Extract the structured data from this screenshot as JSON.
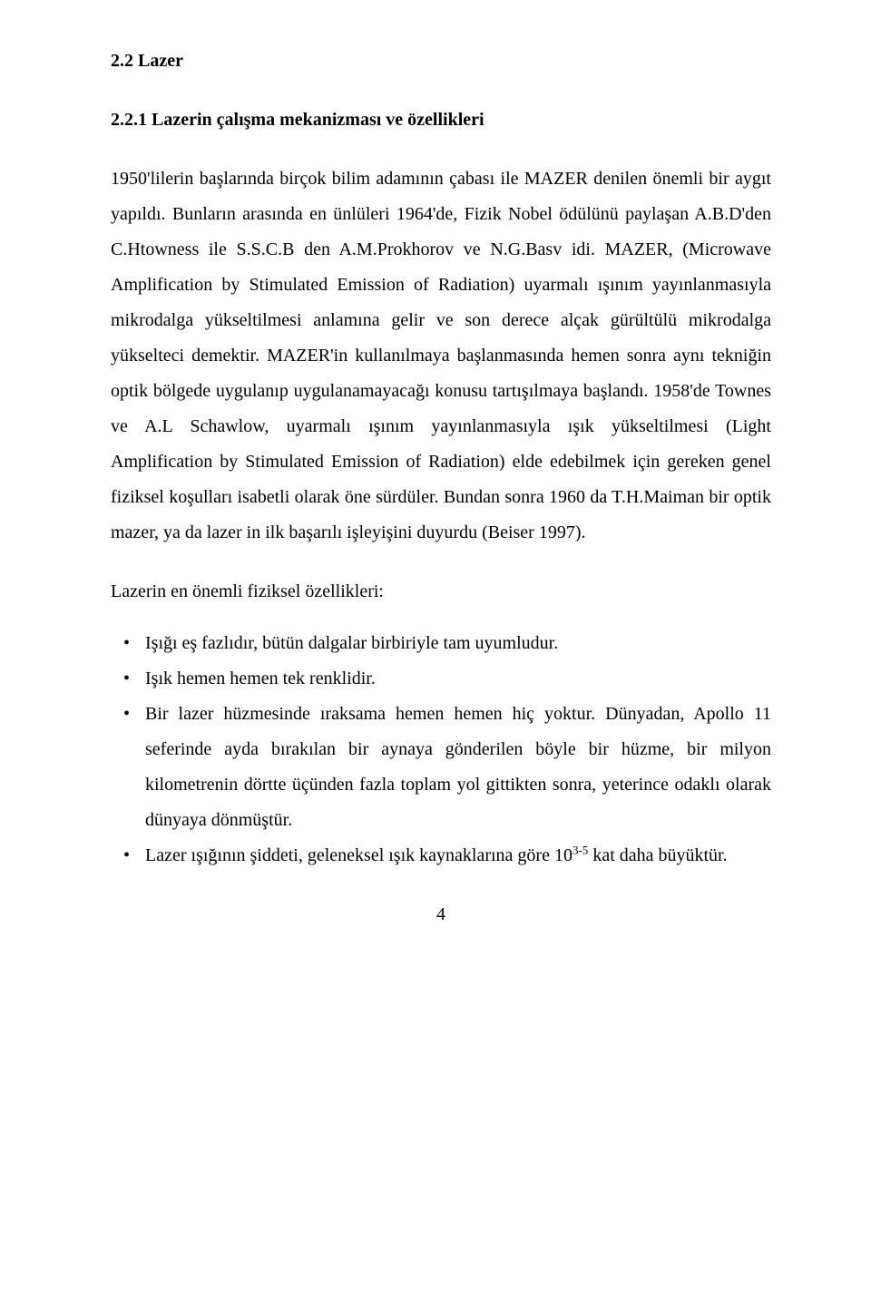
{
  "headings": {
    "h2": "2.2 Lazer",
    "h3": "2.2.1 Lazerin çalışma mekanizması ve özellikleri"
  },
  "paragraphs": {
    "p1": "1950'lilerin başlarında birçok bilim adamının çabası ile MAZER denilen önemli bir aygıt yapıldı. Bunların arasında en ünlüleri 1964'de, Fizik Nobel ödülünü paylaşan A.B.D'den C.Htowness ile S.S.C.B den A.M.Prokhorov ve N.G.Basv idi. MAZER, (Microwave Amplification by Stimulated Emission of Radiation) uyarmalı ışınım yayınlanmasıyla mikrodalga yükseltilmesi anlamına gelir ve son derece alçak gürültülü mikrodalga yükselteci demektir. MAZER'in kullanılmaya başlanmasında hemen sonra aynı tekniğin optik bölgede uygulanıp uygulanamayacağı konusu tartışılmaya başlandı. 1958'de Townes ve A.L Schawlow, uyarmalı ışınım yayınlanmasıyla ışık yükseltilmesi (Light Amplification by Stimulated Emission of Radiation) elde edebilmek için gereken genel fiziksel koşulları isabetli olarak öne sürdüler. Bundan sonra 1960 da T.H.Maiman bir optik mazer, ya da lazer in ilk başarılı işleyişini duyurdu (Beiser 1997).",
    "p2": "Lazerin en önemli fiziksel özellikleri:"
  },
  "bullets": {
    "b1": "Işığı eş fazlıdır, bütün dalgalar birbiriyle tam uyumludur.",
    "b2": "Işık hemen hemen tek renklidir.",
    "b3": "Bir lazer hüzmesinde ıraksama hemen hemen hiç yoktur. Dünyadan, Apollo 11 seferinde ayda bırakılan bir aynaya gönderilen böyle bir hüzme, bir milyon kilometrenin dörtte üçünden fazla toplam yol gittikten sonra, yeterince odaklı olarak dünyaya dönmüştür.",
    "b4_pre": "Lazer ışığının şiddeti, geleneksel ışık kaynaklarına göre 10",
    "b4_sup": "3-5",
    "b4_post": " kat daha büyüktür."
  },
  "page_number": "4"
}
